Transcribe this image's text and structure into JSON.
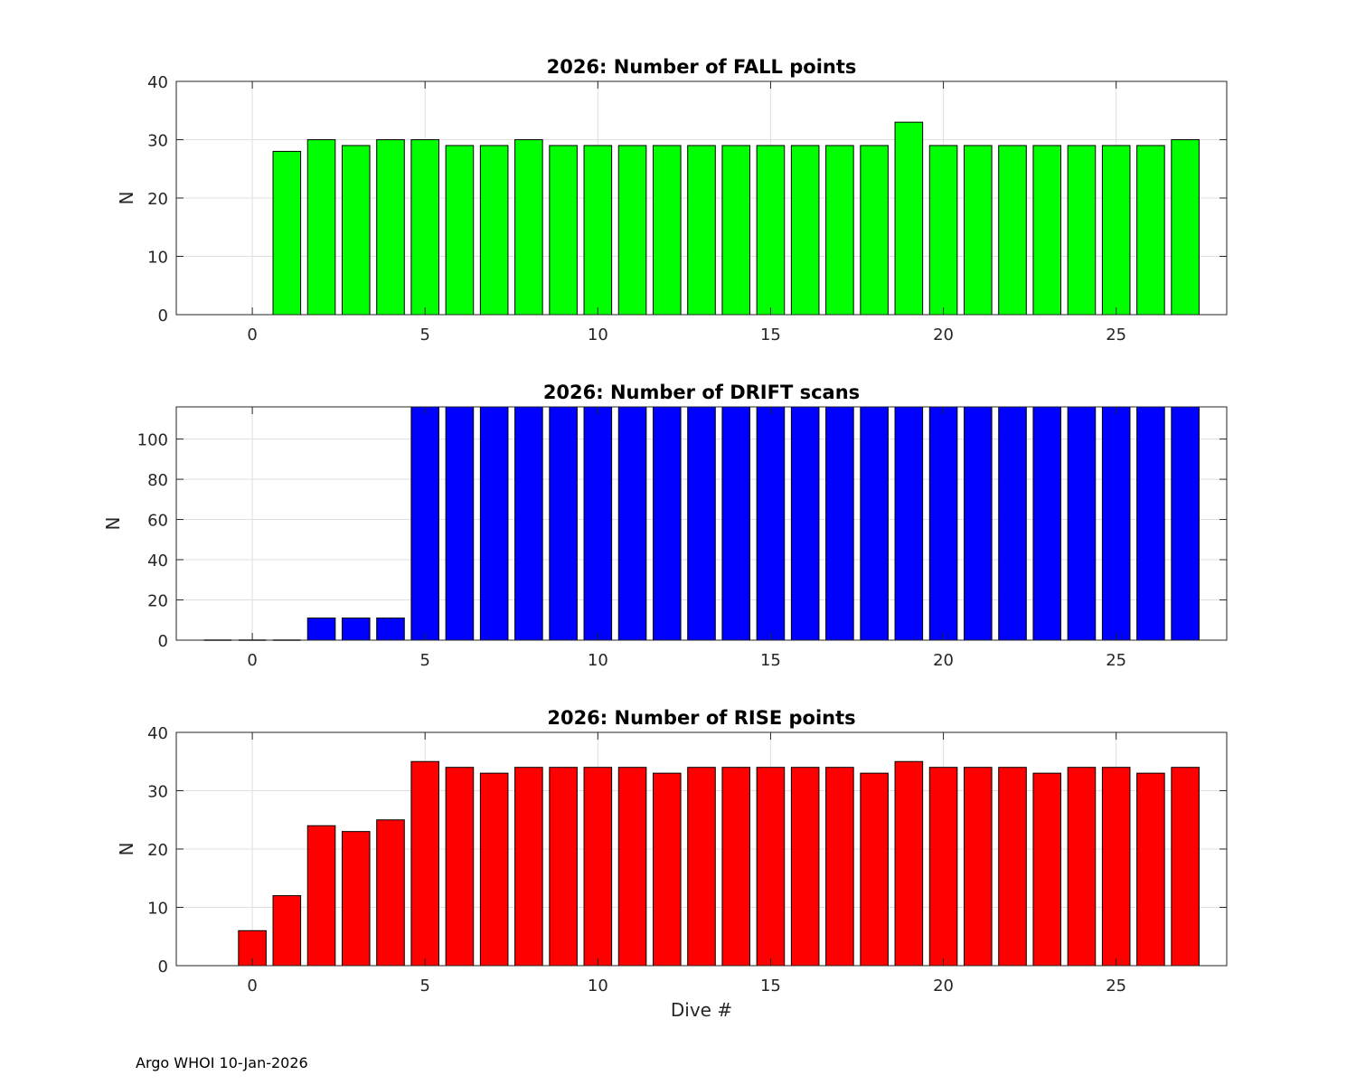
{
  "footer": "Argo WHOI 10-Jan-2026",
  "chart_data": [
    {
      "type": "bar",
      "title": "2026: Number of FALL points",
      "xlabel": "",
      "ylabel": "N",
      "color": "#00ff00",
      "xlim": [
        -2.2,
        28.2
      ],
      "ylim": [
        0,
        40
      ],
      "xticks": [
        0,
        5,
        10,
        15,
        20,
        25
      ],
      "yticks": [
        0,
        10,
        20,
        30,
        40
      ],
      "grid": true,
      "x": [
        1,
        2,
        3,
        4,
        5,
        6,
        7,
        8,
        9,
        10,
        11,
        12,
        13,
        14,
        15,
        16,
        17,
        18,
        19,
        20,
        21,
        22,
        23,
        24,
        25,
        26,
        27
      ],
      "values": [
        28,
        30,
        29,
        30,
        30,
        29,
        29,
        30,
        29,
        29,
        29,
        29,
        29,
        29,
        29,
        29,
        29,
        29,
        33,
        29,
        29,
        29,
        29,
        29,
        29,
        29,
        30
      ]
    },
    {
      "type": "bar",
      "title": "2026: Number of DRIFT scans",
      "xlabel": "",
      "ylabel": "N",
      "color": "#0000ff",
      "xlim": [
        -2.2,
        28.2
      ],
      "ylim": [
        0,
        116
      ],
      "xticks": [
        0,
        5,
        10,
        15,
        20,
        25
      ],
      "yticks": [
        0,
        20,
        40,
        60,
        80,
        100
      ],
      "grid": true,
      "x": [
        -1,
        0,
        1,
        2,
        3,
        4,
        5,
        6,
        7,
        8,
        9,
        10,
        11,
        12,
        13,
        14,
        15,
        16,
        17,
        18,
        19,
        20,
        21,
        22,
        23,
        24,
        25,
        26,
        27
      ],
      "values": [
        0,
        0,
        0,
        11,
        11,
        11,
        116,
        116,
        116,
        116,
        116,
        116,
        116,
        116,
        116,
        116,
        116,
        116,
        116,
        116,
        116,
        116,
        116,
        116,
        116,
        116,
        116,
        116,
        116
      ]
    },
    {
      "type": "bar",
      "title": "2026: Number of RISE points",
      "xlabel": "Dive #",
      "ylabel": "N",
      "color": "#ff0000",
      "xlim": [
        -2.2,
        28.2
      ],
      "ylim": [
        0,
        40
      ],
      "xticks": [
        0,
        5,
        10,
        15,
        20,
        25
      ],
      "yticks": [
        0,
        10,
        20,
        30,
        40
      ],
      "grid": true,
      "x": [
        0,
        1,
        2,
        3,
        4,
        5,
        6,
        7,
        8,
        9,
        10,
        11,
        12,
        13,
        14,
        15,
        16,
        17,
        18,
        19,
        20,
        21,
        22,
        23,
        24,
        25,
        26,
        27
      ],
      "values": [
        6,
        12,
        24,
        23,
        25,
        35,
        34,
        33,
        34,
        34,
        34,
        34,
        33,
        34,
        34,
        34,
        34,
        34,
        33,
        35,
        34,
        34,
        34,
        33,
        34,
        34,
        33,
        34
      ]
    }
  ]
}
